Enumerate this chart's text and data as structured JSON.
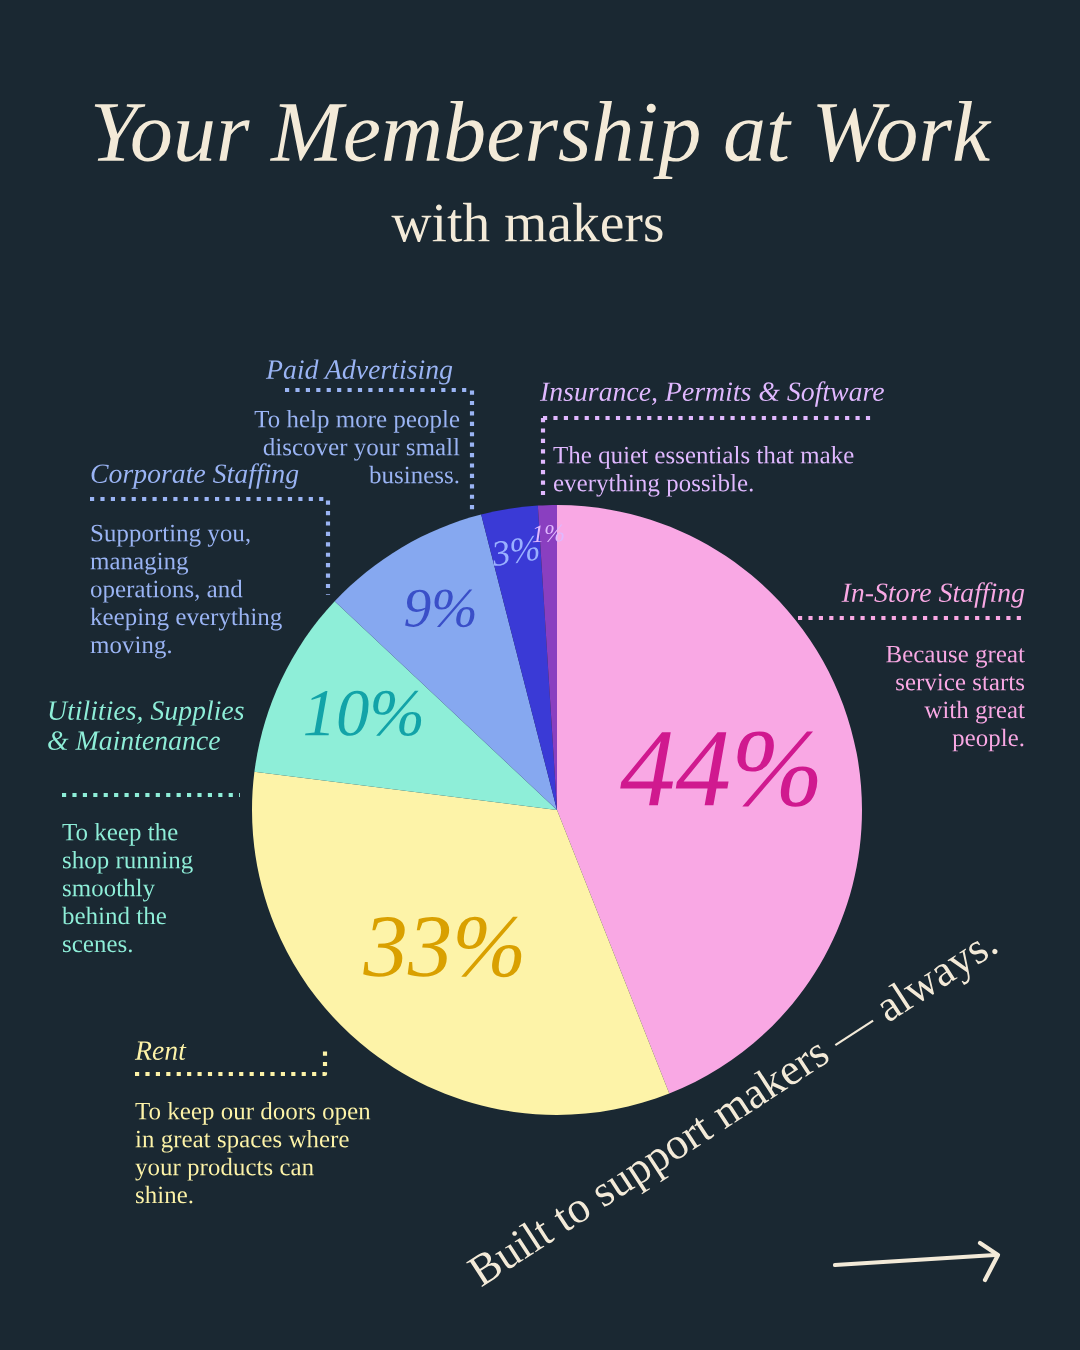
{
  "chart_data": {
    "type": "pie",
    "title": "Your Membership at Work",
    "subtitle": "with makers",
    "categories": [
      "In-Store Staffing",
      "Rent",
      "Utilities, Supplies & Maintenance",
      "Corporate Staffing",
      "Paid Advertising",
      "Insurance, Permits & Software"
    ],
    "values": [
      44,
      33,
      10,
      9,
      3,
      1
    ],
    "colors": [
      "#f9a8e4",
      "#fdf3a8",
      "#8eeed8",
      "#86a8f0",
      "#3a3ad6",
      "#8a3fc0"
    ],
    "value_labels": [
      "44%",
      "33%",
      "10%",
      "9%",
      "3%",
      "1%"
    ],
    "annotations": [
      "Because great service starts with great people.",
      "To keep our doors open in great spaces where your products can shine.",
      "To keep the shop running smoothly behind the scenes.",
      "Supporting you, managing operations, and keeping everything moving.",
      "To help more people discover your small business.",
      "The quiet essentials that make everything possible.",
      "Built to support makers — always."
    ]
  }
}
